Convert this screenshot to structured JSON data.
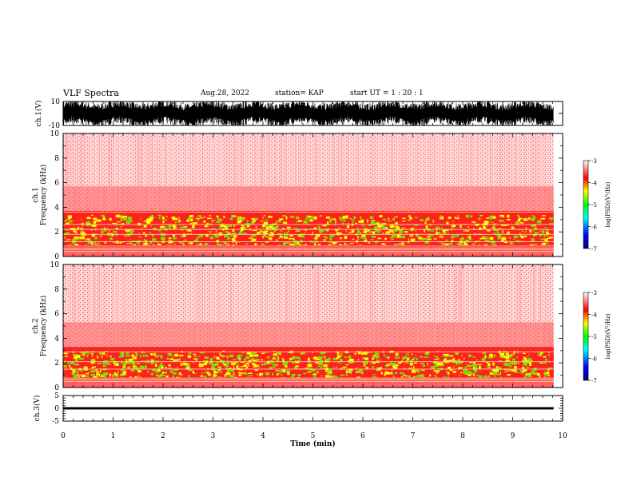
{
  "header": {
    "title": "VLF Spectra",
    "date": "Aug.28, 2022",
    "station": "station= KAP",
    "start": "start  UT =   1 : 20 : 1"
  },
  "chart_data": [
    {
      "type": "line",
      "panel": "ch1-waveform",
      "ylabel": "ch.1(V)",
      "ylim": [
        -10,
        10
      ],
      "yticks": [
        "10",
        "-10"
      ],
      "xlim": [
        0,
        10
      ],
      "x_end": 9.82,
      "description_values": "dense noisy waveform spanning roughly -10 to 10 V"
    },
    {
      "type": "heatmap",
      "panel": "ch1-spectrogram",
      "ylabel": "ch.1\nFrequency (kHz)",
      "ylabel_line1": "ch.1",
      "ylabel_line2": "Frequency (kHz)",
      "ylim": [
        0,
        10
      ],
      "yticks": [
        "0",
        "2",
        "4",
        "6",
        "8",
        "10"
      ],
      "xlim": [
        0,
        10
      ],
      "x_end": 9.82,
      "bands": [
        {
          "from": 3.7,
          "to": 10,
          "level": "low"
        },
        {
          "from": 0.9,
          "to": 3.7,
          "level": "high"
        },
        {
          "from": 0,
          "to": 0.9,
          "level": "mid"
        }
      ],
      "lines_khz": [
        0.4,
        0.6,
        1.2,
        1.8,
        2.2,
        2.6,
        3.6
      ]
    },
    {
      "type": "heatmap",
      "panel": "ch2-spectrogram",
      "ylabel_line1": "ch.2",
      "ylabel_line2": "Frequency (kHz)",
      "ylim": [
        0,
        10
      ],
      "yticks": [
        "0",
        "2",
        "4",
        "6",
        "8",
        "10"
      ],
      "xlim": [
        0,
        10
      ],
      "x_end": 9.82,
      "bands": [
        {
          "from": 3.3,
          "to": 10,
          "level": "low"
        },
        {
          "from": 0.8,
          "to": 3.3,
          "level": "high"
        },
        {
          "from": 0,
          "to": 0.8,
          "level": "mid"
        }
      ],
      "lines_khz": [
        0.5,
        0.7,
        1.5,
        2.1,
        2.9
      ]
    },
    {
      "type": "line",
      "panel": "ch3-waveform",
      "ylabel": "ch.3(V)",
      "ylim": [
        -5,
        5
      ],
      "yticks": [
        "5",
        "0",
        "-5"
      ],
      "band": [
        -0.45,
        0.45
      ],
      "xlim": [
        0,
        10
      ],
      "x_end": 9.82,
      "xlabel": "Time (min)",
      "xticks": [
        "0",
        "1",
        "2",
        "3",
        "4",
        "5",
        "6",
        "7",
        "8",
        "9",
        "10"
      ]
    }
  ],
  "colorbar": {
    "label": "log(PSD)(V²/Hz)",
    "ticks": [
      "-3",
      "-4",
      "-5",
      "-6",
      "-7"
    ],
    "range": [
      -7,
      -3
    ],
    "stops": [
      "#000080",
      "#0000ff",
      "#00ffff",
      "#00ff00",
      "#ffff00",
      "#ff0000",
      "#ffffff"
    ]
  },
  "colors": {
    "high": "#7fe000",
    "high2": "#ffff00",
    "mid": "#ff2020",
    "low": "#ff5050",
    "bg": "#ffe6e6"
  }
}
